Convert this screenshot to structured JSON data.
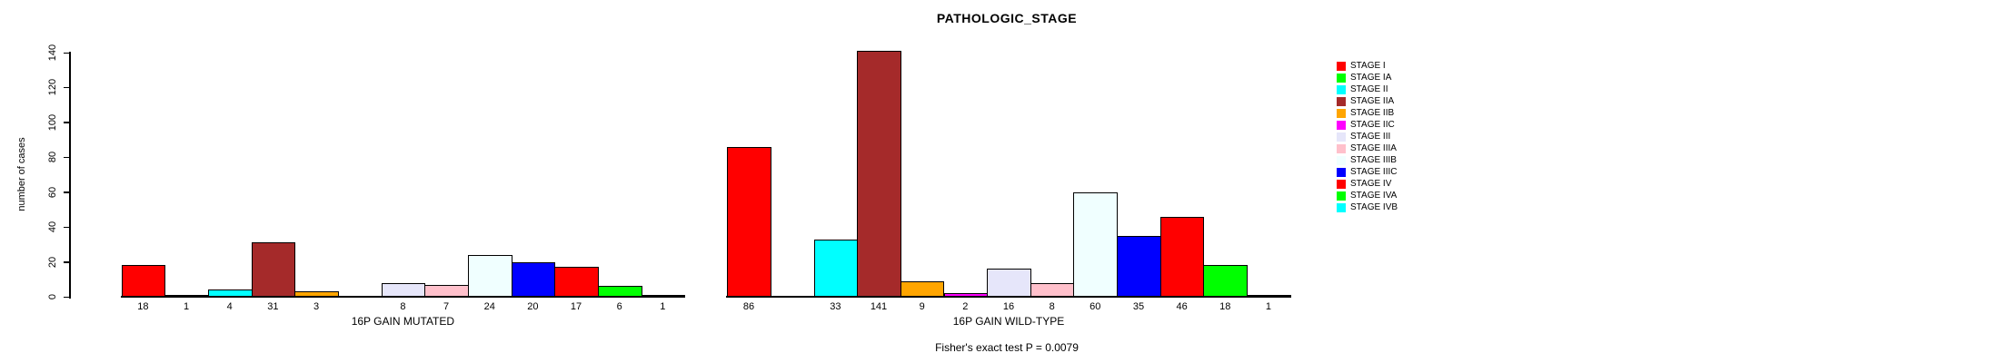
{
  "chart_data": {
    "type": "bar",
    "title": "PATHOLOGIC_STAGE",
    "ylabel": "number of cases",
    "xlabel": "",
    "ylim": [
      0,
      140
    ],
    "y_ticks": [
      0,
      20,
      40,
      60,
      80,
      100,
      120,
      140
    ],
    "grid": false,
    "legend_position": "right",
    "categories": [
      "STAGE I",
      "STAGE IA",
      "STAGE II",
      "STAGE IIA",
      "STAGE IIB",
      "STAGE IIC",
      "STAGE III",
      "STAGE IIIA",
      "STAGE IIIB",
      "STAGE IIIC",
      "STAGE IV",
      "STAGE IVA",
      "STAGE IVB"
    ],
    "colors": [
      "#FF0000",
      "#00FF00",
      "#00FFFF",
      "#A52A2A",
      "#FFA500",
      "#FF00FF",
      "#E6E6FA",
      "#FFC0CB",
      "#F0FFFF",
      "#0000FF",
      "#FF0000",
      "#00FF00",
      "#00FFFF"
    ],
    "series": [
      {
        "name": "16P GAIN MUTATED",
        "values": [
          18,
          1,
          4,
          31,
          3,
          null,
          8,
          7,
          24,
          20,
          17,
          6,
          1
        ]
      },
      {
        "name": "16P GAIN WILD-TYPE",
        "values": [
          86,
          null,
          33,
          141,
          9,
          2,
          16,
          8,
          60,
          35,
          46,
          18,
          1
        ]
      }
    ],
    "annotation": "Fisher's exact test P = 0.0079"
  }
}
